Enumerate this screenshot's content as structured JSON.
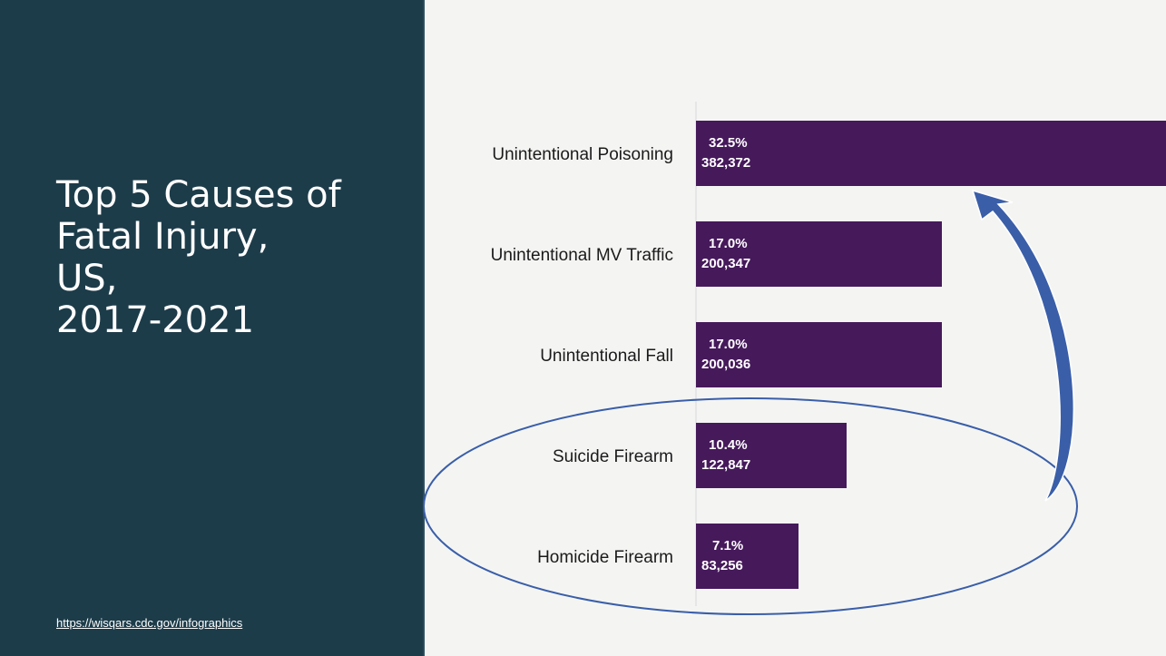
{
  "slide": {
    "title": "Top 5 Causes of\nFatal Injury,\nUS,\n2017-2021",
    "source_link": "https://wisqars.cdc.gov/infographics"
  },
  "colors": {
    "left_panel": "#1d3c4a",
    "bar": "#46195b",
    "annotation": "#3a5ea8"
  },
  "annotations": [
    {
      "type": "ellipse",
      "encloses": [
        "Suicide Firearm",
        "Homicide Firearm"
      ]
    },
    {
      "type": "curved-arrow",
      "from": "Suicide Firearm",
      "to": "Unintentional Poisoning"
    }
  ],
  "chart_data": {
    "type": "bar",
    "orientation": "horizontal",
    "categories": [
      "Unintentional Poisoning",
      "Unintentional MV Traffic",
      "Unintentional Fall",
      "Suicide Firearm",
      "Homicide Firearm"
    ],
    "values": [
      382372,
      200347,
      200036,
      122847,
      83256
    ],
    "percent_labels": [
      "32.5%",
      "17.0%",
      "17.0%",
      "10.4%",
      "7.1%"
    ],
    "value_labels": [
      "382,372",
      "200,347",
      "200,036",
      "122,847",
      "83,256"
    ],
    "xlim": [
      0,
      382372
    ],
    "grid": false,
    "legend": "none"
  }
}
